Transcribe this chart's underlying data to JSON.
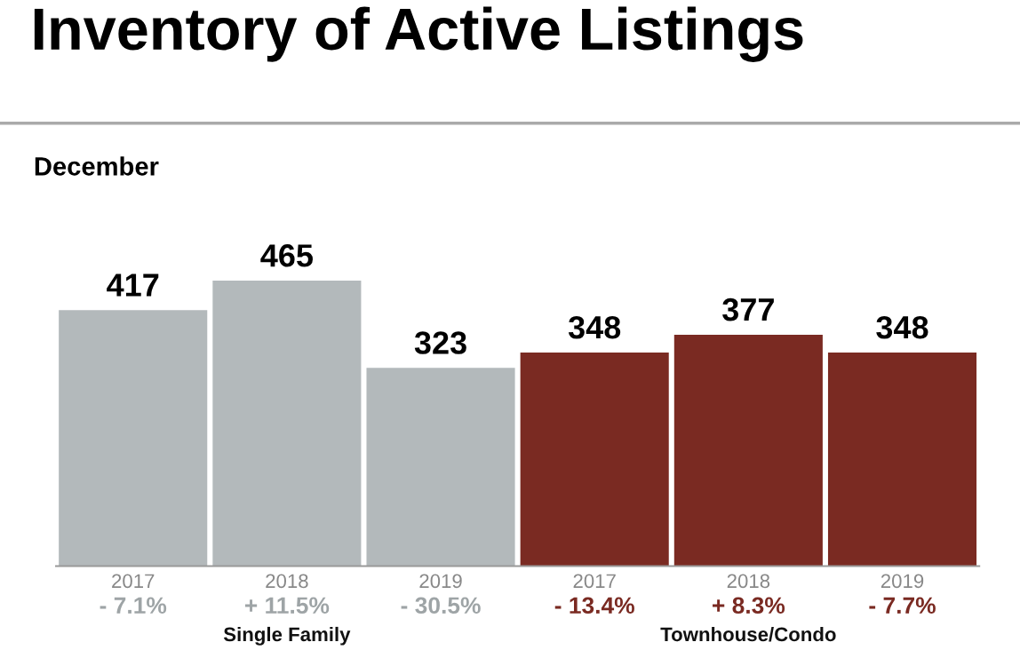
{
  "chart_data": {
    "type": "bar",
    "title": "Inventory of Active Listings",
    "subtitle": "December",
    "categories": [
      "2017",
      "2018",
      "2019",
      "2017",
      "2018",
      "2019"
    ],
    "values": [
      417,
      465,
      323,
      348,
      377,
      348
    ],
    "colors": [
      "#b3b9bb",
      "#b3b9bb",
      "#b3b9bb",
      "#7a2a22",
      "#7a2a22",
      "#7a2a22"
    ],
    "data_labels": true,
    "relative": false,
    "grid": false,
    "legend": false,
    "annotations": [
      "- 7.1%",
      "+ 11.5%",
      "- 30.5%",
      "- 13.4%",
      "+ 8.3%",
      "- 7.7%",
      "Single Family",
      "Townhouse/Condo"
    ]
  }
}
